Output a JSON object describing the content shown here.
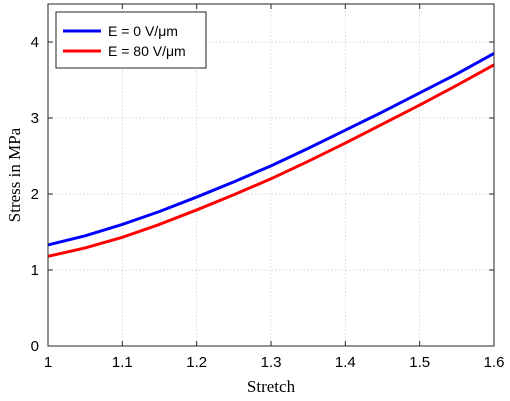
{
  "chart_data": {
    "type": "line",
    "title": "",
    "xlabel": "Stretch",
    "ylabel": "Stress in MPa",
    "xlim": [
      1,
      1.6
    ],
    "ylim": [
      0,
      4.5
    ],
    "xticks": [
      "1",
      "1.1",
      "1.2",
      "1.3",
      "1.4",
      "1.5",
      "1.6"
    ],
    "yticks": [
      "0",
      "1",
      "2",
      "3",
      "4"
    ],
    "grid": true,
    "legend_position": "top-left",
    "x": [
      1.0,
      1.05,
      1.1,
      1.15,
      1.2,
      1.25,
      1.3,
      1.35,
      1.4,
      1.45,
      1.5,
      1.55,
      1.6
    ],
    "series": [
      {
        "name": "E = 0 V/μm",
        "color": "#0000ff",
        "values": [
          1.33,
          1.45,
          1.6,
          1.77,
          1.96,
          2.16,
          2.37,
          2.6,
          2.84,
          3.08,
          3.33,
          3.58,
          3.85
        ]
      },
      {
        "name": "E = 80 V/μm",
        "color": "#ff0000",
        "values": [
          1.18,
          1.29,
          1.43,
          1.6,
          1.79,
          1.99,
          2.2,
          2.43,
          2.67,
          2.92,
          3.17,
          3.43,
          3.7
        ]
      }
    ]
  }
}
